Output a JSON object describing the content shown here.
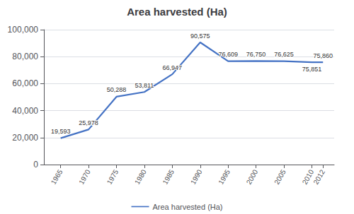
{
  "chart_data": {
    "type": "line",
    "title": "Area harvested (Ha)",
    "x": [
      1965,
      1970,
      1975,
      1980,
      1985,
      1990,
      1995,
      2000,
      2005,
      2010,
      2012
    ],
    "series": [
      {
        "name": "Area harvested (Ha)",
        "color": "#4472C4",
        "values": [
          19593,
          25978,
          50288,
          53811,
          66947,
          90575,
          76609,
          76750,
          76625,
          75851,
          75860
        ],
        "value_labels": [
          "19,593",
          "25,978",
          "50,288",
          "53,811",
          "66,947",
          "90,575",
          "76,609",
          "76,750",
          "76,625",
          "75,851",
          "75,860"
        ]
      }
    ],
    "xlim": [
      1962,
      2014
    ],
    "xticks": [
      1965,
      1970,
      1975,
      1980,
      1985,
      1990,
      1995,
      2000,
      2005,
      2010,
      2012
    ],
    "ylim": [
      0,
      100000
    ],
    "yticks": [
      0,
      {
        "value": 20000,
        "label": "20,000"
      },
      {
        "value": 40000,
        "label": "40,000"
      },
      {
        "value": 60000,
        "label": "60,000"
      },
      {
        "value": 80000,
        "label": "80,000"
      },
      {
        "value": 100000,
        "label": "100,000"
      }
    ],
    "grid": true,
    "legend": "bottom",
    "data_labels": true
  }
}
